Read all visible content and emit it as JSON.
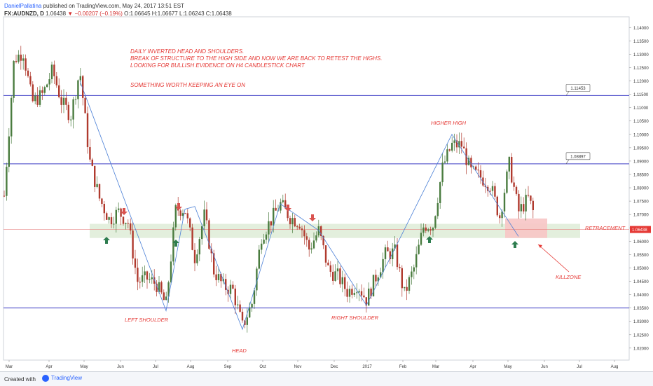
{
  "header": {
    "author": "DanielPallatina",
    "published": "published on TradingView.com, May 24, 2017 13:51 EST",
    "symbol": "FX:AUDNZD, D",
    "price": "1.06438",
    "change": "−0.00207 (−0.19%)",
    "ohlc_o": "O:1.06645",
    "ohlc_h": "H:1.06677",
    "ohlc_l": "L:1.06243",
    "ohlc_c": "C:1.06438"
  },
  "footer": {
    "created_with": "Created with",
    "brand": "TradingView"
  },
  "colors": {
    "up": "#4a7c3f",
    "down": "#b03a2e",
    "hline": "#3b3bc4",
    "trend": "#4a7fd6",
    "annotation": "#e53935",
    "zone": "#dcebd4",
    "killzone": "#f7c5c5",
    "arrow_up": "#2e7d4f",
    "arrow_down": "#d9534f"
  },
  "chart_data": {
    "type": "candlestick",
    "title": "",
    "xlabel": "",
    "ylabel": "",
    "ylim": [
      1.0155,
      1.144
    ],
    "x_labels": [
      "Mar",
      "Apr",
      "May",
      "Jun",
      "Jul",
      "Aug",
      "Sep",
      "Oct",
      "Nov",
      "Dec",
      "2017",
      "Feb",
      "Mar",
      "Apr",
      "May",
      "Jun",
      "Jul",
      "Aug"
    ],
    "y_ticks": [
      "1.14000",
      "1.13500",
      "1.13000",
      "1.12500",
      "1.12000",
      "1.11500",
      "1.11000",
      "1.10500",
      "1.10000",
      "1.09500",
      "1.09000",
      "1.08500",
      "1.08000",
      "1.07500",
      "1.07000",
      "1.06500",
      "1.06000",
      "1.05500",
      "1.05000",
      "1.04500",
      "1.04000",
      "1.03500",
      "1.03000",
      "1.02500",
      "1.02000"
    ],
    "last_price": "1.06438",
    "price_path": [
      [
        0,
        1.077
      ],
      [
        14,
        1.128
      ],
      [
        27,
        1.131
      ],
      [
        40,
        1.112
      ],
      [
        55,
        1.115
      ],
      [
        69,
        1.124
      ],
      [
        82,
        1.112
      ],
      [
        95,
        1.107
      ],
      [
        108,
        1.124
      ],
      [
        122,
        1.09
      ],
      [
        136,
        1.076
      ],
      [
        150,
        1.068
      ],
      [
        163,
        1.071
      ],
      [
        177,
        1.067
      ],
      [
        190,
        1.045
      ],
      [
        204,
        1.046
      ],
      [
        217,
        1.044
      ],
      [
        231,
        1.036
      ],
      [
        245,
        1.072
      ],
      [
        258,
        1.072
      ],
      [
        272,
        1.054
      ],
      [
        286,
        1.07
      ],
      [
        299,
        1.049
      ],
      [
        313,
        1.043
      ],
      [
        326,
        1.042
      ],
      [
        340,
        1.028
      ],
      [
        354,
        1.037
      ],
      [
        367,
        1.062
      ],
      [
        381,
        1.068
      ],
      [
        394,
        1.074
      ],
      [
        408,
        1.069
      ],
      [
        422,
        1.067
      ],
      [
        435,
        1.057
      ],
      [
        449,
        1.064
      ],
      [
        463,
        1.049
      ],
      [
        476,
        1.047
      ],
      [
        490,
        1.041
      ],
      [
        504,
        1.044
      ],
      [
        517,
        1.038
      ],
      [
        531,
        1.047
      ],
      [
        544,
        1.055
      ],
      [
        558,
        1.056
      ],
      [
        571,
        1.04
      ],
      [
        585,
        1.05
      ],
      [
        599,
        1.066
      ],
      [
        612,
        1.066
      ],
      [
        626,
        1.088
      ],
      [
        639,
        1.096
      ],
      [
        653,
        1.096
      ],
      [
        666,
        1.086
      ],
      [
        680,
        1.084
      ],
      [
        694,
        1.081
      ],
      [
        707,
        1.069
      ],
      [
        721,
        1.089
      ],
      [
        734,
        1.071
      ],
      [
        748,
        1.076
      ],
      [
        762,
        1.066
      ]
    ],
    "horizontal_levels": [
      {
        "value": 1.11453,
        "label": "1.11453"
      },
      {
        "value": 1.08897,
        "label": "1.08897"
      },
      {
        "value": 1.035,
        "label": ""
      }
    ],
    "annotations": [
      {
        "text": "DAILY INVERTED HEAD AND SHOULDERS."
      },
      {
        "text": "BREAK OF STRUCTURE TO THE HIGH SIDE AND NOW WE ARE BACK TO RETEST THE HIGHS."
      },
      {
        "text": "LOOKING FOR BULLISH EVIDENCE ON H4 CANDLESTICK CHART"
      },
      {
        "text": "SOMETHING WORTH KEEPING AN EYE ON"
      }
    ],
    "labels": {
      "left_shoulder": "LEFT SHOULDER",
      "head": "HEAD",
      "right_shoulder": "RIGHT SHOULDER",
      "higher_high": "HIGHER HIGH",
      "retracement": "RETRACEMENT",
      "killzone": "KILLZONE"
    }
  }
}
